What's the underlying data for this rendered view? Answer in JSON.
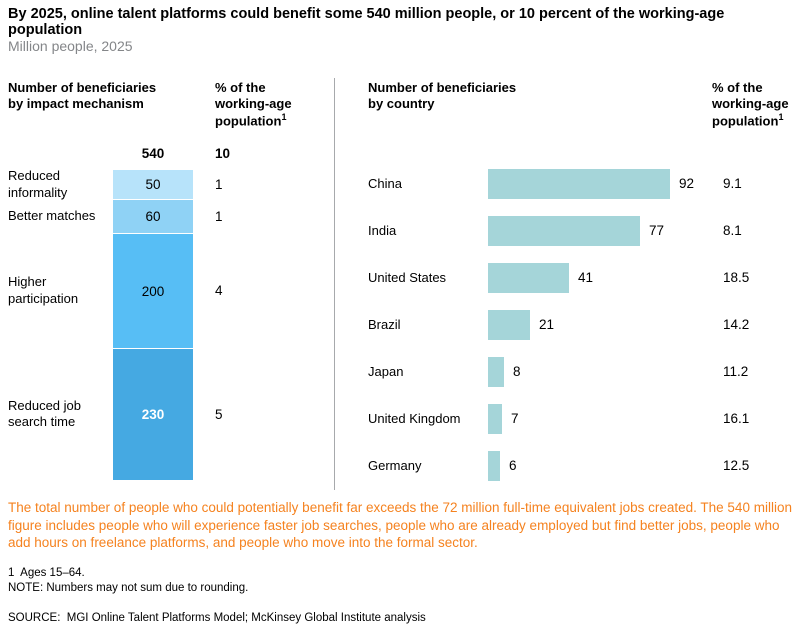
{
  "title": "By 2025, online talent platforms could benefit some 540 million people, or 10 percent of the working-age population",
  "subtitle": "Million people, 2025",
  "colors": {
    "accent_orange": "#F5821F",
    "subtitle_gray": "#848689",
    "divider_gray": "#A7A9AC",
    "country_bar": "#A5D5D9",
    "stack_colors": [
      "#B7E3FA",
      "#8FD2F5",
      "#57BEF5",
      "#45A9E2"
    ],
    "stack_value_colors": [
      "#000000",
      "#000000",
      "#000000",
      "#FFFFFF"
    ]
  },
  "left_panel": {
    "header": "Number of beneficiaries\nby impact mechanism",
    "pct_header": "% of the\nworking-age\npopulation",
    "pct_header_sup": "1"
  },
  "right_panel": {
    "header": "Number of beneficiaries\nby country",
    "pct_header": "% of the\nworking-age\npopulation",
    "pct_header_sup": "1"
  },
  "chart_data": [
    {
      "type": "bar",
      "orientation": "vertical-stacked",
      "title": "Number of beneficiaries by impact mechanism",
      "units": "million people",
      "total": 540,
      "total_pct_of_working_age": 10,
      "segments": [
        {
          "label": "Reduced\ninformality",
          "value": 50,
          "pct_of_working_age": 1
        },
        {
          "label": "Better matches",
          "value": 60,
          "pct_of_working_age": 1
        },
        {
          "label": "Higher\nparticipation",
          "value": 200,
          "pct_of_working_age": 4
        },
        {
          "label": "Reduced job\nsearch time",
          "value": 230,
          "pct_of_working_age": 5
        }
      ]
    },
    {
      "type": "bar",
      "orientation": "horizontal",
      "title": "Number of beneficiaries by country",
      "units": "million people",
      "categories": [
        "China",
        "India",
        "United States",
        "Brazil",
        "Japan",
        "United Kingdom",
        "Germany"
      ],
      "values": [
        92,
        77,
        41,
        21,
        8,
        7,
        6
      ],
      "pct_of_working_age": [
        9.1,
        8.1,
        18.5,
        14.2,
        11.2,
        16.1,
        12.5
      ],
      "xlim": [
        0,
        100
      ],
      "legend": "none",
      "grid": false
    }
  ],
  "commentary": "The total number of people who could potentially benefit far exceeds the 72 million full-time equivalent jobs created. The 540 million figure includes people who will experience faster job searches, people who are already employed but find better jobs, people who add hours on freelance platforms, and people who move into the formal sector.",
  "footnotes": {
    "footnote1": "1  Ages 15–64.",
    "note": "NOTE: Numbers may not sum due to rounding."
  },
  "source": "SOURCE:  MGI Online Talent Platforms Model; McKinsey Global Institute analysis"
}
